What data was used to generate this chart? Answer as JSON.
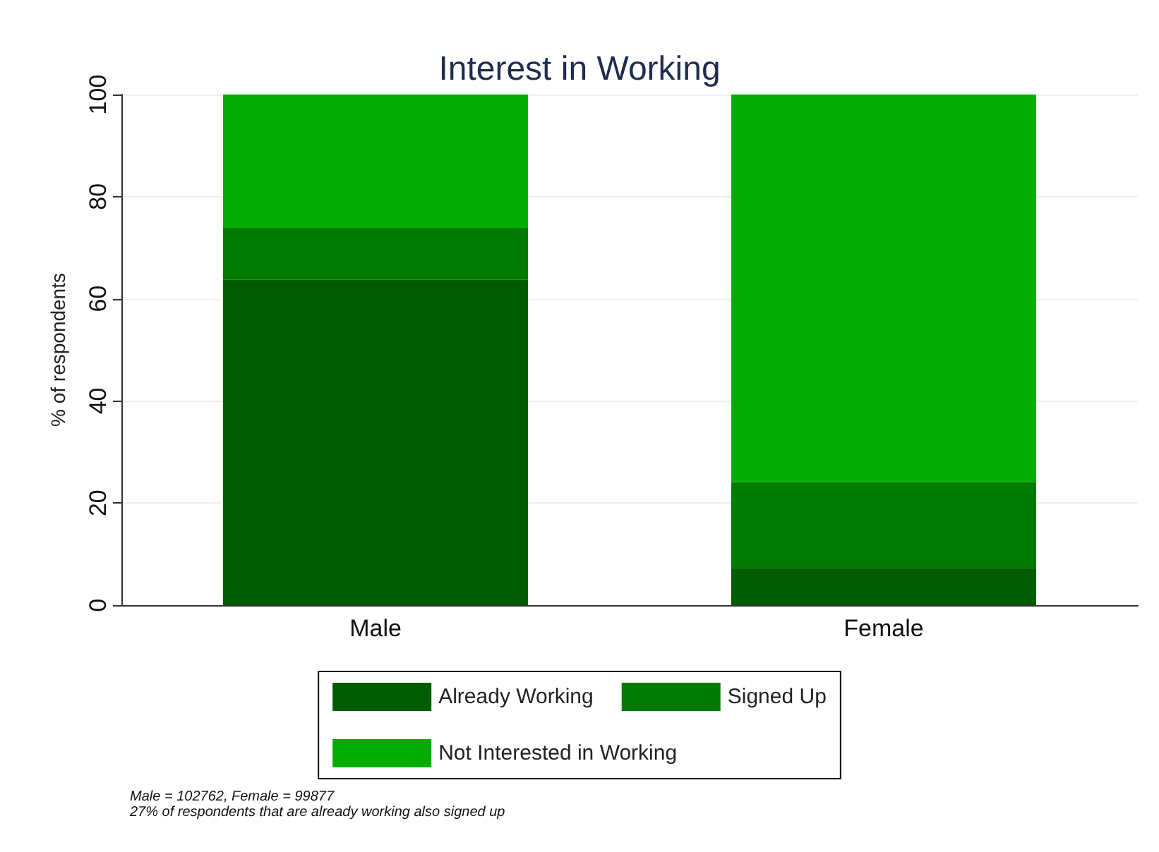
{
  "chart_data": {
    "type": "bar",
    "title": "Interest in Working",
    "ylabel": "% of respondents",
    "categories": [
      "Male",
      "Female"
    ],
    "stacked": true,
    "series": [
      {
        "name": "Already Working",
        "color": "#005c00",
        "values": [
          63.7,
          7.3
        ]
      },
      {
        "name": "Signed Up",
        "color": "#007a00",
        "values": [
          10.2,
          16.8
        ]
      },
      {
        "name": "Not Interested in Working",
        "color": "#00ad00",
        "values": [
          26.1,
          75.9
        ]
      }
    ],
    "ylim": [
      0,
      100
    ],
    "yticks": [
      0,
      20,
      40,
      60,
      80,
      100
    ],
    "grid": "y",
    "legend": "bottom",
    "annotations": [
      "Male = 102762, Female = 99877",
      "27% of respondents that are already working also signed up"
    ]
  }
}
